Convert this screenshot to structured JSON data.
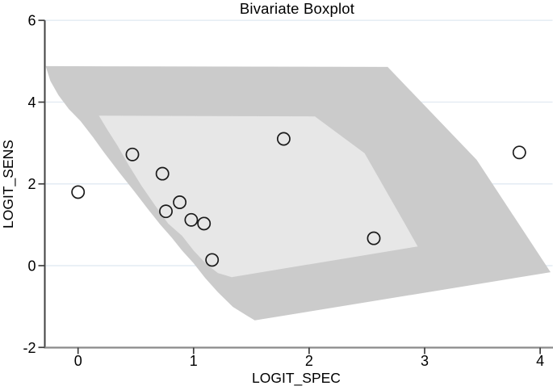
{
  "title": "Bivariate Boxplot",
  "chart_data": {
    "type": "scatter",
    "title": "Bivariate Boxplot",
    "xlabel": "LOGIT_SPEC",
    "ylabel": "LOGIT_SENS",
    "xlim": [
      -0.29,
      4.11
    ],
    "ylim": [
      -2,
      6
    ],
    "xticks": [
      0,
      1,
      2,
      3,
      4
    ],
    "yticks": [
      -2,
      0,
      2,
      4,
      6
    ],
    "gridlines_y": [
      0,
      2,
      4,
      6
    ],
    "grid": "horizontal-only",
    "legend_position": "none",
    "marker": "hollow-circle",
    "points": [
      [
        0.0,
        1.8
      ],
      [
        0.47,
        2.72
      ],
      [
        0.73,
        2.25
      ],
      [
        0.76,
        1.33
      ],
      [
        0.88,
        1.55
      ],
      [
        0.98,
        1.12
      ],
      [
        1.09,
        1.03
      ],
      [
        1.16,
        0.14
      ],
      [
        1.78,
        3.1
      ],
      [
        2.56,
        0.67
      ],
      [
        3.82,
        2.77
      ]
    ],
    "regions": {
      "outer_fence": [
        [
          -0.28,
          4.88
        ],
        [
          -0.24,
          4.52
        ],
        [
          -0.17,
          4.17
        ],
        [
          -0.08,
          3.83
        ],
        [
          0.02,
          3.54
        ],
        [
          0.13,
          3.14
        ],
        [
          0.23,
          2.75
        ],
        [
          0.36,
          2.27
        ],
        [
          0.48,
          1.84
        ],
        [
          0.6,
          1.4
        ],
        [
          0.71,
          1.01
        ],
        [
          0.81,
          0.69
        ],
        [
          0.9,
          0.37
        ],
        [
          1.0,
          0.06
        ],
        [
          1.1,
          -0.3
        ],
        [
          1.21,
          -0.65
        ],
        [
          1.34,
          -1.01
        ],
        [
          1.46,
          -1.22
        ],
        [
          1.53,
          -1.34
        ],
        [
          4.09,
          -0.16
        ],
        [
          3.45,
          2.59
        ],
        [
          2.68,
          4.86
        ]
      ],
      "inner_bag": [
        [
          0.18,
          3.67
        ],
        [
          2.05,
          3.65
        ],
        [
          2.48,
          2.75
        ],
        [
          2.82,
          1.07
        ],
        [
          2.94,
          0.47
        ],
        [
          1.33,
          -0.28
        ],
        [
          1.21,
          -0.18
        ],
        [
          1.11,
          0.04
        ],
        [
          1.0,
          0.37
        ],
        [
          0.9,
          0.73
        ],
        [
          0.78,
          1.03
        ],
        [
          0.67,
          1.46
        ],
        [
          0.55,
          1.95
        ],
        [
          0.44,
          2.45
        ],
        [
          0.34,
          2.94
        ],
        [
          0.25,
          3.34
        ]
      ]
    }
  },
  "colors": {
    "title_text": "#22386b",
    "outer_fence_fill": "#cbcbcb",
    "inner_bag_fill": "#e7e7e7",
    "gridline": "#e3ebf3",
    "x_axis_line": "#8a8a8a",
    "y_axis_line": "#424242",
    "tick_mark": "#3d3d3d",
    "point_stroke": "#1a1a1a",
    "label_text": "#000000"
  }
}
